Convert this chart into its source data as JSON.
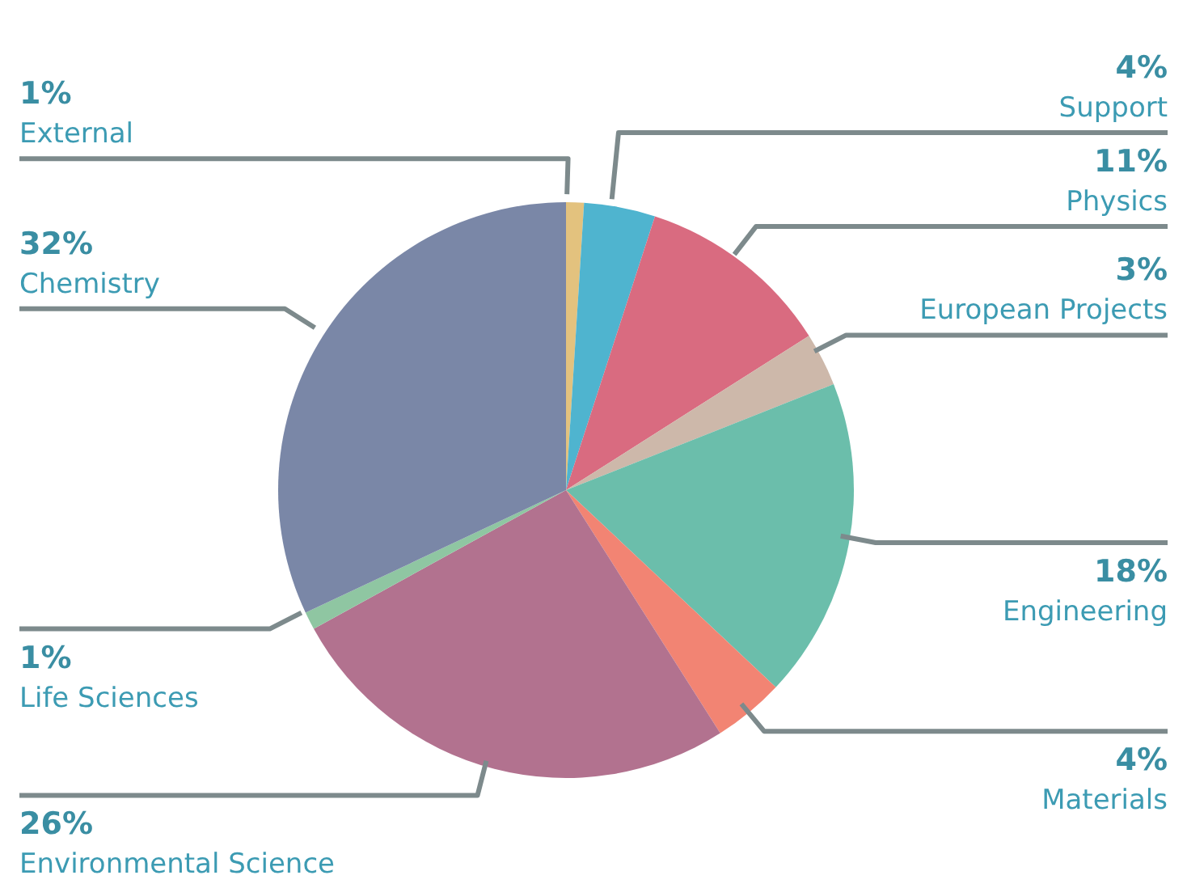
{
  "chart_data": {
    "type": "pie",
    "categories": [
      "External",
      "Support",
      "Physics",
      "European Projects",
      "Engineering",
      "Materials",
      "Environmental Science",
      "Life Sciences",
      "Chemistry"
    ],
    "values": [
      1,
      4,
      11,
      3,
      18,
      4,
      26,
      1,
      32
    ],
    "value_labels": [
      "1%",
      "4%",
      "11%",
      "3%",
      "18%",
      "4%",
      "26%",
      "1%",
      "32%"
    ],
    "colors": [
      "#e3c27e",
      "#4fb4cf",
      "#d96b80",
      "#cdb8aa",
      "#6bbeab",
      "#f28473",
      "#b2728f",
      "#8fc6a2",
      "#7a87a7"
    ]
  }
}
